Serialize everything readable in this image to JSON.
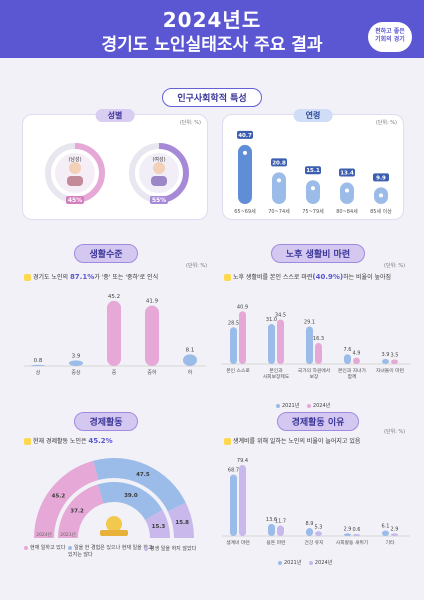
{
  "header": {
    "year_title": "2024년도",
    "title": "경기도 노인실태조사 주요 결과",
    "badge": [
      "편하고 좋은",
      "기회의 경기"
    ]
  },
  "colors": {
    "brand": "#5b57d3",
    "pink": "#e6a8d6",
    "pink_dark": "#d47fbf",
    "blue": "#9bbbe8",
    "blue_dark": "#5f8ed6",
    "purple": "#a68ad8",
    "lavender": "#c9b8ec"
  },
  "sections": {
    "demographics": "인구사회학적 특성",
    "living": "생활수준",
    "retirement": "노후 생활비 마련",
    "economic": "경제활동",
    "economic_reason": "경제활동 이유"
  },
  "unit": "(단위: %)",
  "gender": {
    "title": "성별",
    "male_label": "남성",
    "male_value": 45,
    "male_text": "45%",
    "female_label": "여성",
    "female_value": 55,
    "female_text": "55%"
  },
  "age": {
    "title": "연령",
    "bars": [
      {
        "label": "65~69세",
        "value": 40.7,
        "text": "40.7"
      },
      {
        "label": "70~74세",
        "value": 20.8,
        "text": "20.8"
      },
      {
        "label": "75~79세",
        "value": 15.1,
        "text": "15.1"
      },
      {
        "label": "80~84세",
        "value": 13.4,
        "text": "13.4"
      },
      {
        "label": "85세 이상",
        "value": 9.9,
        "text": "9.9"
      }
    ]
  },
  "living": {
    "note_prefix": "경기도 노인의 ",
    "note_num": "87.1%",
    "note_suffix": "가 '중' 또는 '중하'로 인식",
    "chart_data": {
      "type": "bar",
      "categories": [
        "상",
        "중상",
        "중",
        "중하",
        "하"
      ],
      "values": [
        0.8,
        3.9,
        45.2,
        41.9,
        8.1
      ],
      "labels": [
        "0.8",
        "3.9",
        "45.2",
        "41.9",
        "8.1"
      ],
      "ylim": [
        0,
        50
      ]
    }
  },
  "retirement": {
    "note_prefix": "노후 생활비를 본인 스스로 마련",
    "note_num": "(40.9%)",
    "note_suffix": "하는 비율이 높아짐",
    "chart_data": {
      "type": "bar",
      "categories": [
        "본인 스스로",
        "본인과 사회보장제도",
        "국가의 차원에서 보장",
        "본인과 자녀가 함께",
        "자녀들이 마련"
      ],
      "series": [
        {
          "name": "2021년",
          "values": [
            28.5,
            31.0,
            29.1,
            7.6,
            3.9
          ],
          "labels": [
            "28.5",
            "31.0",
            "29.1",
            "7.6",
            "3.9"
          ]
        },
        {
          "name": "2024년",
          "values": [
            40.9,
            34.5,
            16.3,
            4.9,
            3.5
          ],
          "labels": [
            "40.9",
            "34.5",
            "16.3",
            "4.9",
            "3.5"
          ]
        }
      ],
      "ylim": [
        0,
        45
      ]
    },
    "legend": [
      "2021년",
      "2024년"
    ]
  },
  "economic": {
    "note_prefix": "현재 경제활동 노인은 ",
    "note_num": "45.2%",
    "chart_data": {
      "type": "pie",
      "series": [
        {
          "name": "2024년",
          "values": [
            45.2,
            15.8
          ],
          "labels": [
            "45.2",
            "15.8"
          ]
        },
        {
          "name": "2021년",
          "values": [
            37.2,
            15.3
          ],
          "labels": [
            "37.2",
            "15.3"
          ]
        }
      ],
      "top_labels": [
        "47.5",
        "39.0"
      ],
      "top_values": [
        47.5,
        39.0
      ]
    },
    "ring_year_labels": [
      "2024년",
      "2021년"
    ],
    "legend": [
      "현재 일하고 있다",
      "일을 한 경험은 있으나 현재 일을 하고 있지는 않다",
      "평생 일을 하지 않았다"
    ]
  },
  "economic_reason": {
    "note": "생계비를 위해 일하는 노인의 비율이 늘어지고 있음",
    "chart_data": {
      "type": "bar",
      "categories": [
        "생계비 마련",
        "용돈 마련",
        "건강 유지",
        "사회활동 새위기",
        "기타"
      ],
      "series": [
        {
          "name": "2021년",
          "values": [
            68.7,
            13.6,
            8.9,
            2.9,
            6.1
          ],
          "labels": [
            "68.7",
            "13.6",
            "8.9",
            "2.9",
            "6.1"
          ]
        },
        {
          "name": "2024년",
          "values": [
            79.4,
            11.7,
            5.3,
            0.6,
            2.9
          ],
          "labels": [
            "79.4",
            "11.7",
            "5.3",
            "0.6",
            "2.9"
          ]
        }
      ],
      "ylim": [
        0,
        85
      ]
    },
    "legend": [
      "2021년",
      "2024년"
    ]
  }
}
